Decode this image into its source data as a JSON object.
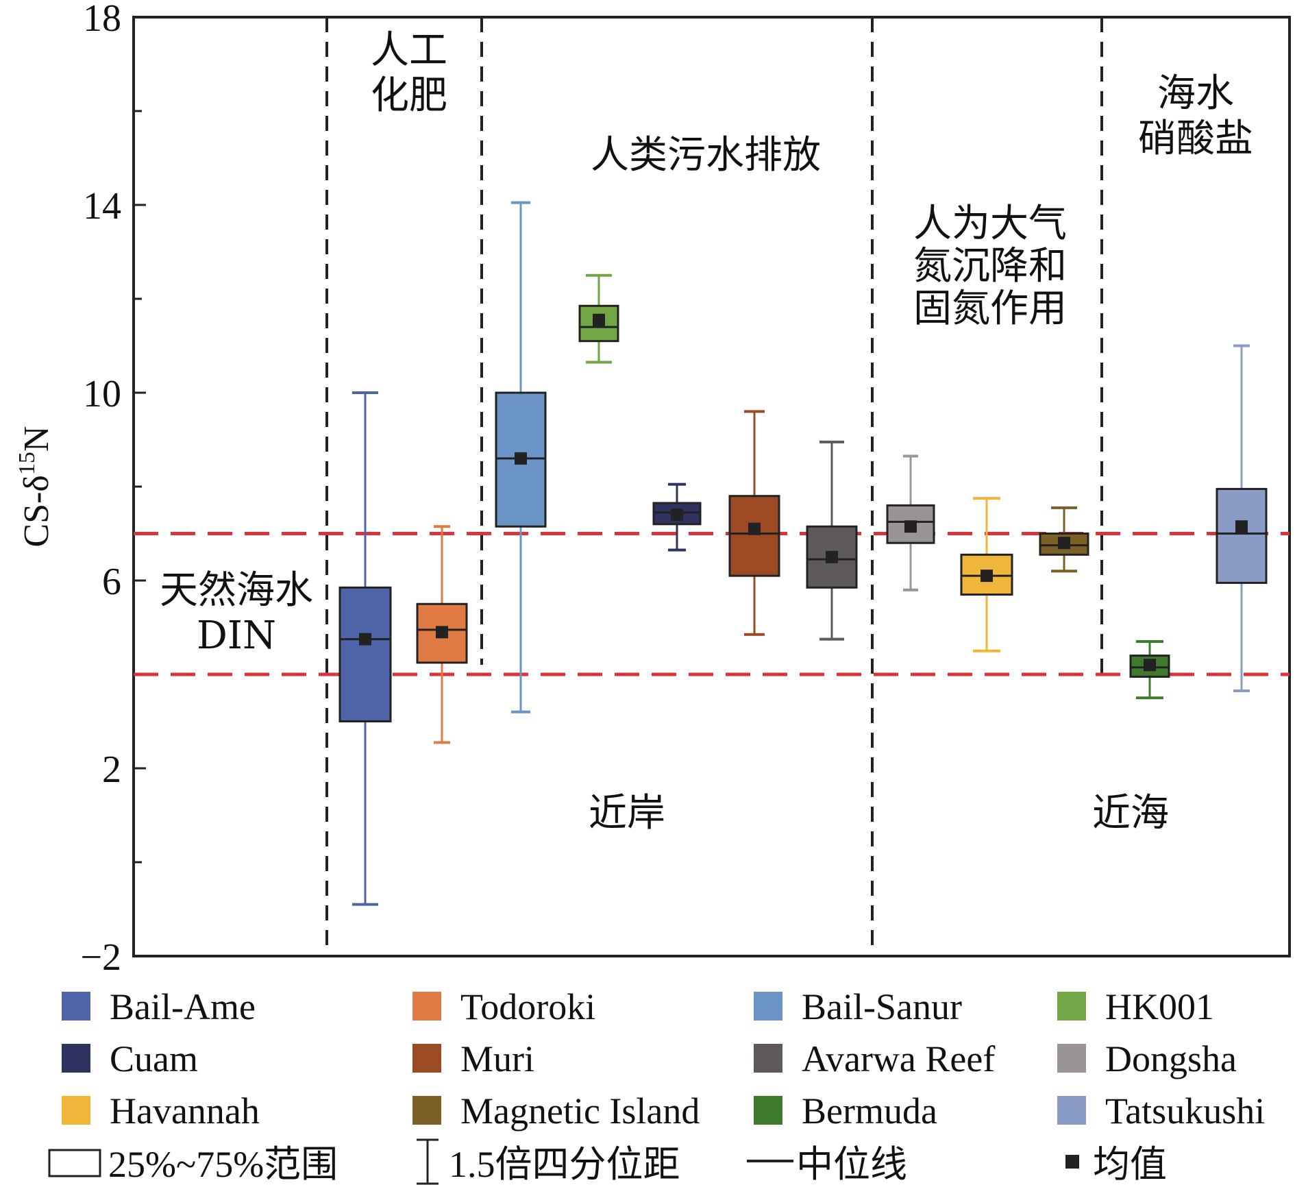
{
  "chart_data": {
    "type": "box",
    "title": "",
    "ylabel": "CS-δ",
    "ylabel_sup": "15",
    "ylabel_suffix": "N",
    "ylim": [
      -2,
      18
    ],
    "yticks": [
      -2,
      2,
      6,
      10,
      14,
      18
    ],
    "ytick_labels": [
      "−2",
      "2",
      "6",
      "10",
      "14",
      "18"
    ],
    "grid": false,
    "series": [
      {
        "name": "Bail-Ame",
        "color": "#4f63a8",
        "whisker_low": -0.9,
        "q1": 3.0,
        "median": 4.75,
        "q3": 5.85,
        "whisker_high": 10.0,
        "mean": 4.75
      },
      {
        "name": "Todoroki",
        "color": "#e07a45",
        "whisker_low": 2.55,
        "q1": 4.25,
        "median": 4.95,
        "q3": 5.5,
        "whisker_high": 7.15,
        "mean": 4.9
      },
      {
        "name": "Bail-Sanur",
        "color": "#6a95c6",
        "whisker_low": 3.2,
        "q1": 7.15,
        "median": 8.6,
        "q3": 10.0,
        "whisker_high": 14.05,
        "mean": 8.6
      },
      {
        "name": "HK001",
        "color": "#72a645",
        "whisker_low": 10.65,
        "q1": 11.1,
        "median": 11.4,
        "q3": 11.85,
        "whisker_high": 12.5,
        "mean": 11.55
      },
      {
        "name": "Cuam",
        "color": "#2f3360",
        "whisker_low": 6.65,
        "q1": 7.2,
        "median": 7.45,
        "q3": 7.65,
        "whisker_high": 8.05,
        "mean": 7.4
      },
      {
        "name": "Muri",
        "color": "#9b4a24",
        "whisker_low": 4.85,
        "q1": 6.1,
        "median": 7.0,
        "q3": 7.8,
        "whisker_high": 9.6,
        "mean": 7.1
      },
      {
        "name": "Avarwa Reef",
        "color": "#5f5a5a",
        "whisker_low": 4.75,
        "q1": 5.85,
        "median": 6.45,
        "q3": 7.15,
        "whisker_high": 8.95,
        "mean": 6.5
      },
      {
        "name": "Dongsha",
        "color": "#9a9494",
        "whisker_low": 5.8,
        "q1": 6.8,
        "median": 7.25,
        "q3": 7.6,
        "whisker_high": 8.65,
        "mean": 7.15
      },
      {
        "name": "Havannah",
        "color": "#efb63a",
        "whisker_low": 4.5,
        "q1": 5.7,
        "median": 6.1,
        "q3": 6.55,
        "whisker_high": 7.75,
        "mean": 6.1
      },
      {
        "name": "Magnetic Island",
        "color": "#7c6126",
        "whisker_low": 6.2,
        "q1": 6.55,
        "median": 6.75,
        "q3": 7.0,
        "whisker_high": 7.55,
        "mean": 6.8
      },
      {
        "name": "Bermuda",
        "color": "#3f7a2e",
        "whisker_low": 3.5,
        "q1": 3.95,
        "median": 4.15,
        "q3": 4.4,
        "whisker_high": 4.7,
        "mean": 4.2
      },
      {
        "name": "Tatsukushi",
        "color": "#8a9bc6",
        "whisker_low": 3.65,
        "q1": 5.95,
        "median": 7.0,
        "q3": 7.95,
        "whisker_high": 11.0,
        "mean": 7.15
      }
    ],
    "reference_lines": [
      7.0,
      4.0
    ],
    "reference_line_color": "#d8343a",
    "regions": [
      {
        "lines": [
          "人工",
          "化肥"
        ]
      },
      {
        "lines": [
          "人类污水排放"
        ]
      },
      {
        "lines": [
          "人为大气",
          "氮沉降和",
          "固氮作用"
        ]
      },
      {
        "lines": [
          "海水",
          "硝酸盐"
        ]
      },
      {
        "lines": [
          "天然海水",
          "DIN"
        ]
      }
    ],
    "zone_labels": [
      "近岸",
      "近海"
    ],
    "legend_position": "bottom",
    "legend_symbols": {
      "box": "25%~75%范围",
      "whisker": "1.5倍四分位距",
      "median": "中位线",
      "mean": "均值"
    }
  }
}
